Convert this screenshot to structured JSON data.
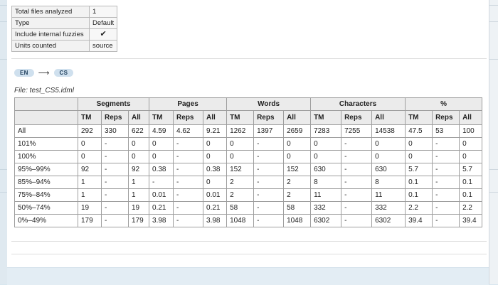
{
  "summary": {
    "rows": [
      {
        "label": "Total files analyzed",
        "value": "1"
      },
      {
        "label": "Type",
        "value": "Default"
      },
      {
        "label": "Include internal fuzzies",
        "value": "✔"
      },
      {
        "label": "Units counted",
        "value": "source"
      }
    ]
  },
  "language_pair": {
    "source": "EN",
    "arrow": "⟶",
    "target": "CS"
  },
  "file_label": "File: test_CS5.idml",
  "stats_table": {
    "groups": [
      "Segments",
      "Pages",
      "Words",
      "Characters",
      "%"
    ],
    "subheaders": [
      "TM",
      "Reps",
      "All"
    ],
    "rows": [
      {
        "label": "All",
        "cells": [
          "292",
          "330",
          "622",
          "4.59",
          "4.62",
          "9.21",
          "1262",
          "1397",
          "2659",
          "7283",
          "7255",
          "14538",
          "47.5",
          "53",
          "100"
        ]
      },
      {
        "label": "101%",
        "cells": [
          "0",
          "-",
          "0",
          "0",
          "-",
          "0",
          "0",
          "-",
          "0",
          "0",
          "-",
          "0",
          "0",
          "-",
          "0"
        ]
      },
      {
        "label": "100%",
        "cells": [
          "0",
          "-",
          "0",
          "0",
          "-",
          "0",
          "0",
          "-",
          "0",
          "0",
          "-",
          "0",
          "0",
          "-",
          "0"
        ]
      },
      {
        "label": "95%–99%",
        "cells": [
          "92",
          "-",
          "92",
          "0.38",
          "-",
          "0.38",
          "152",
          "-",
          "152",
          "630",
          "-",
          "630",
          "5.7",
          "-",
          "5.7"
        ]
      },
      {
        "label": "85%–94%",
        "cells": [
          "1",
          "-",
          "1",
          "-",
          "-",
          "0",
          "2",
          "-",
          "2",
          "8",
          "-",
          "8",
          "0.1",
          "-",
          "0.1"
        ]
      },
      {
        "label": "75%–84%",
        "cells": [
          "1",
          "-",
          "1",
          "0.01",
          "-",
          "0.01",
          "2",
          "-",
          "2",
          "11",
          "-",
          "11",
          "0.1",
          "-",
          "0.1"
        ]
      },
      {
        "label": "50%–74%",
        "cells": [
          "19",
          "-",
          "19",
          "0.21",
          "-",
          "0.21",
          "58",
          "-",
          "58",
          "332",
          "-",
          "332",
          "2.2",
          "-",
          "2.2"
        ]
      },
      {
        "label": "0%–49%",
        "cells": [
          "179",
          "-",
          "179",
          "3.98",
          "-",
          "3.98",
          "1048",
          "-",
          "1048",
          "6302",
          "-",
          "6302",
          "39.4",
          "-",
          "39.4"
        ]
      }
    ]
  }
}
